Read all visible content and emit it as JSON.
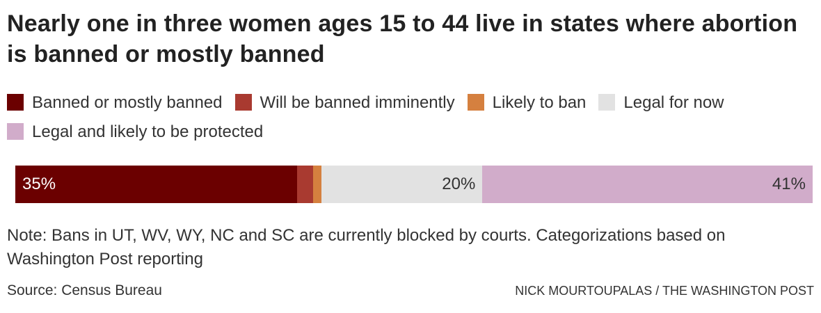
{
  "chart_data": {
    "type": "bar",
    "orientation": "horizontal-stacked",
    "title": "Nearly one in three women ages 15 to 44 live in states where abortion is banned or mostly banned",
    "categories": [
      "Women ages 15 to 44"
    ],
    "series": [
      {
        "name": "Banned or mostly banned",
        "values": [
          35
        ],
        "color": "#6b0000",
        "label": "35%"
      },
      {
        "name": "Will be banned imminently",
        "values": [
          2
        ],
        "color": "#a93a30",
        "label": ""
      },
      {
        "name": "Likely to ban",
        "values": [
          1
        ],
        "color": "#d5803f",
        "label": ""
      },
      {
        "name": "Legal for now",
        "values": [
          20
        ],
        "color": "#e2e2e2",
        "label": "20%"
      },
      {
        "name": "Legal and likely to be protected",
        "values": [
          41
        ],
        "color": "#d1acca",
        "label": "41%"
      }
    ],
    "xlim": [
      0,
      100
    ],
    "legend_position": "top",
    "grid": false
  },
  "title": "Nearly one in three women ages 15 to 44 live in states where abortion is banned or mostly banned",
  "legend": [
    {
      "label": "Banned or mostly banned",
      "color": "#6b0000"
    },
    {
      "label": "Will be banned imminently",
      "color": "#a93a30"
    },
    {
      "label": "Likely to ban",
      "color": "#d5803f"
    },
    {
      "label": "Legal for now",
      "color": "#e2e2e2"
    },
    {
      "label": "Legal and likely to be protected",
      "color": "#d1acca"
    }
  ],
  "note": "Note: Bans in UT, WV, WY, NC and SC are currently blocked by courts. Categorizations based on Washington Post reporting",
  "source": "Source: Census Bureau",
  "credit": "NICK MOURTOUPALAS / THE WASHINGTON POST"
}
